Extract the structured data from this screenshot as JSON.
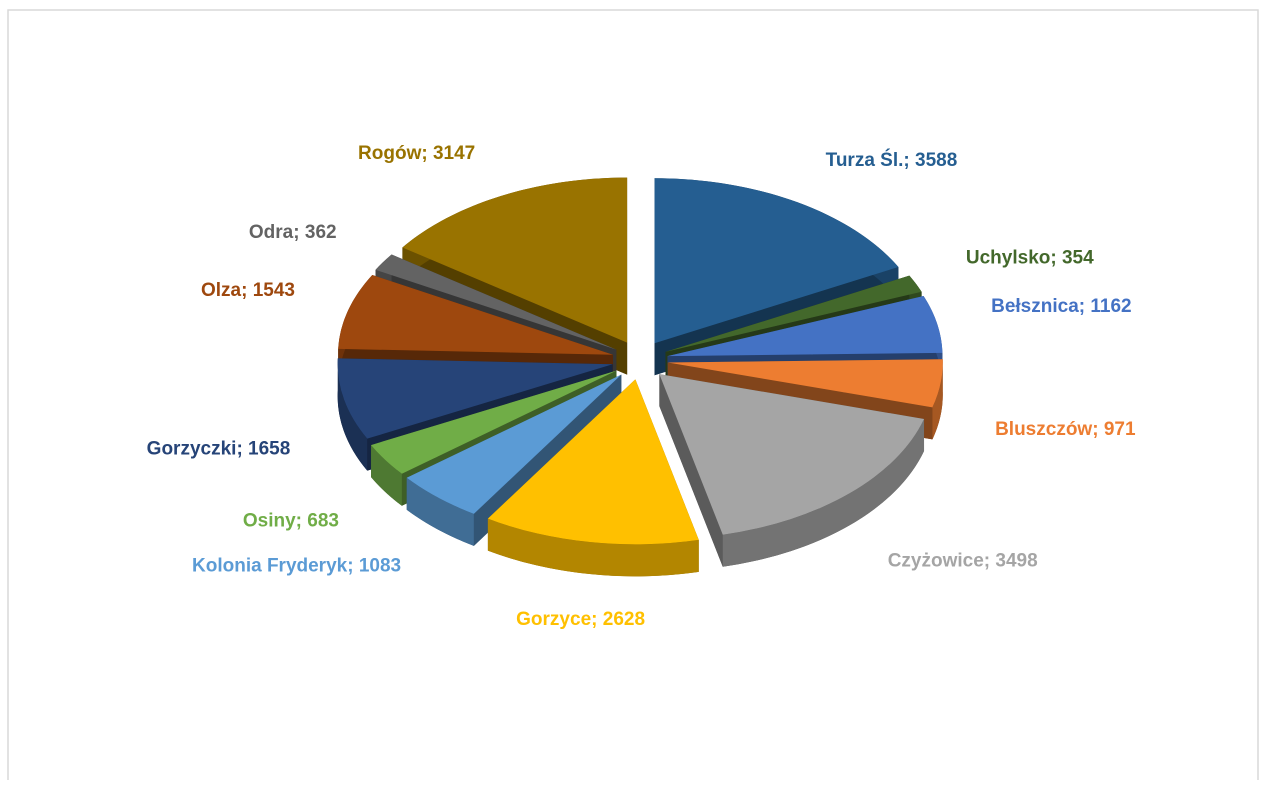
{
  "chart_data": {
    "type": "pie",
    "categories": [
      "Turza Śl.",
      "Uchylsko",
      "Bełsznica",
      "Bluszczów",
      "Czyżowice",
      "Gorzyce",
      "Kolonia Fryderyk",
      "Osiny",
      "Gorzyczki",
      "Olza",
      "Odra",
      "Rogów"
    ],
    "values": [
      3588,
      354,
      1162,
      971,
      3498,
      2628,
      1083,
      683,
      1658,
      1543,
      362,
      3147
    ],
    "colors": [
      "#255e91",
      "#43682b",
      "#4472c4",
      "#ed7d31",
      "#a5a5a5",
      "#ffc000",
      "#5b9bd5",
      "#70ad47",
      "#264478",
      "#9e480e",
      "#636363",
      "#997300"
    ],
    "label_separator": "; "
  }
}
